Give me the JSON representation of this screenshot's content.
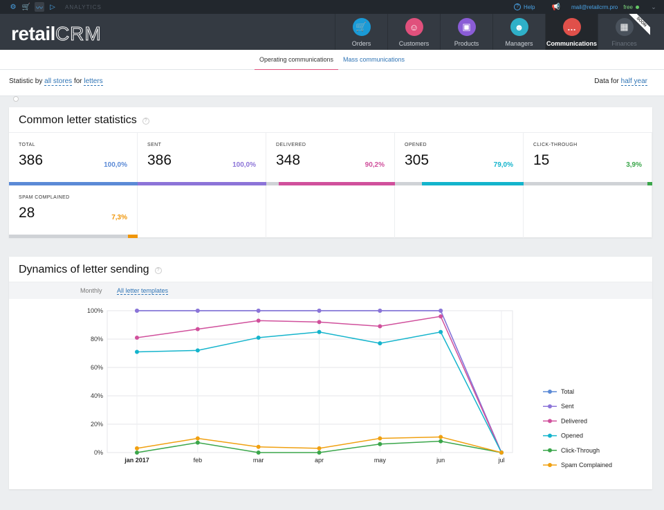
{
  "topbar": {
    "section_label": "ANALYTICS",
    "help_label": "Help",
    "email": "mail@retailcrm.pro",
    "plan": "free"
  },
  "header": {
    "logo_text": "retail",
    "logo_crm": "CRM",
    "nav": [
      {
        "label": "Orders",
        "icon": "cart-icon",
        "color": "#1a9ad6"
      },
      {
        "label": "Customers",
        "icon": "person-icon",
        "color": "#e0507c"
      },
      {
        "label": "Products",
        "icon": "box-icon",
        "color": "#8a5cd6"
      },
      {
        "label": "Managers",
        "icon": "manager-icon",
        "color": "#2fb0c8"
      },
      {
        "label": "Communications",
        "icon": "chat-icon",
        "color": "#e0504a"
      },
      {
        "label": "Finances",
        "icon": "finance-icon",
        "color": "#4a525c"
      }
    ],
    "soon_label": "SOON"
  },
  "subtabs": [
    "Operating communications",
    "Mass communications"
  ],
  "filters": {
    "statistic_by": "Statistic by",
    "stores": "all stores",
    "for": "for",
    "letters": "letters",
    "data_for": "Data for",
    "period": "half year"
  },
  "stats_card": {
    "title": "Common letter statistics",
    "items": [
      {
        "label": "TOTAL",
        "value": "386",
        "pct": "100,0%",
        "fraction": 1.0,
        "color": "#5b8ad6"
      },
      {
        "label": "SENT",
        "value": "386",
        "pct": "100,0%",
        "fraction": 1.0,
        "color": "#8c74d8"
      },
      {
        "label": "DELIVERED",
        "value": "348",
        "pct": "90,2%",
        "fraction": 0.902,
        "color": "#d0509c"
      },
      {
        "label": "OPENED",
        "value": "305",
        "pct": "79,0%",
        "fraction": 0.79,
        "color": "#14b4cc"
      },
      {
        "label": "CLICK-THROUGH",
        "value": "15",
        "pct": "3,9%",
        "fraction": 0.039,
        "color": "#3aa64a"
      },
      {
        "label": "SPAM COMPLAINED",
        "value": "28",
        "pct": "7,3%",
        "fraction": 0.073,
        "color": "#f0960a"
      }
    ]
  },
  "dynamics_card": {
    "title": "Dynamics of letter sending",
    "tab_monthly": "Monthly",
    "tab_templates": "All letter templates"
  },
  "chart_data": {
    "type": "line",
    "categories": [
      "jan 2017",
      "feb",
      "mar",
      "apr",
      "may",
      "jun",
      "jul"
    ],
    "y_ticks": [
      "0%",
      "20%",
      "40%",
      "60%",
      "80%",
      "100%"
    ],
    "ylim": [
      0,
      100
    ],
    "grid": true,
    "legend_position": "right",
    "series": [
      {
        "name": "Total",
        "color": "#5b8ad6",
        "values": [
          100,
          100,
          100,
          100,
          100,
          100,
          0
        ]
      },
      {
        "name": "Sent",
        "color": "#8c74d8",
        "values": [
          100,
          100,
          100,
          100,
          100,
          100,
          0
        ]
      },
      {
        "name": "Delivered",
        "color": "#d0509c",
        "values": [
          81,
          87,
          93,
          92,
          89,
          96,
          0
        ]
      },
      {
        "name": "Opened",
        "color": "#14b4cc",
        "values": [
          71,
          72,
          81,
          85,
          77,
          85,
          0
        ]
      },
      {
        "name": "Click-Through",
        "color": "#3aa64a",
        "values": [
          0,
          7,
          0,
          0,
          6,
          8,
          0
        ]
      },
      {
        "name": "Spam Complained",
        "color": "#f0a010",
        "values": [
          3,
          10,
          4,
          3,
          10,
          11,
          0
        ]
      }
    ]
  }
}
